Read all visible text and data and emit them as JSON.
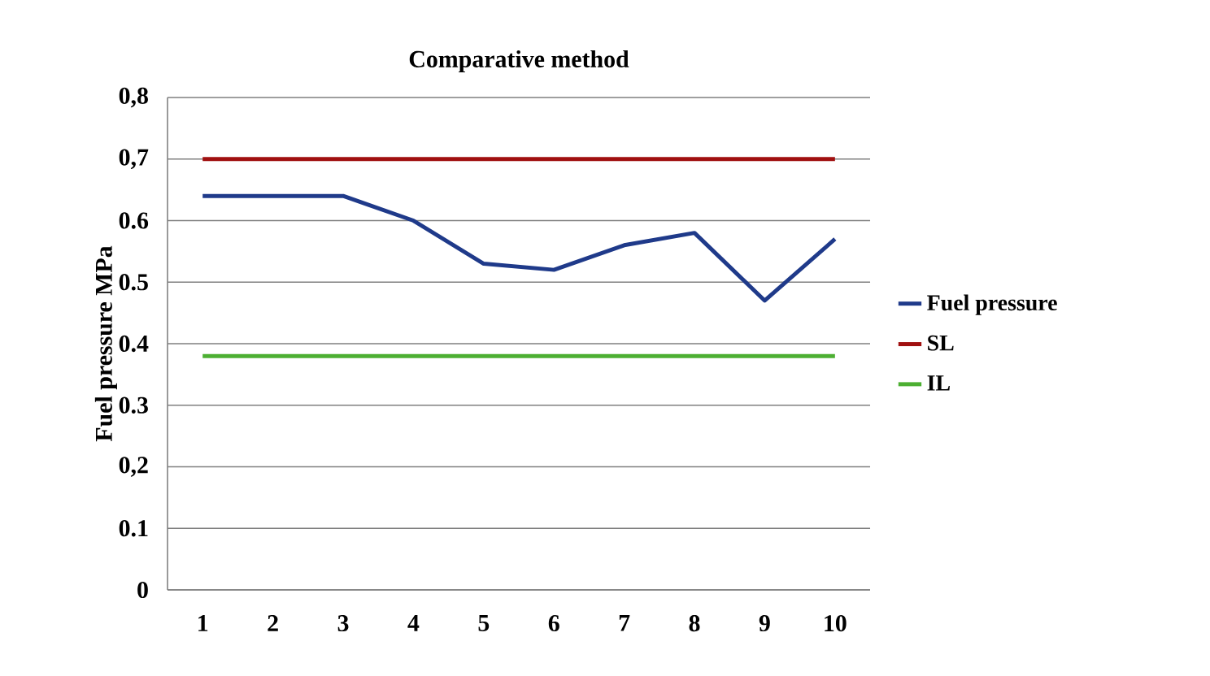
{
  "chart_data": {
    "type": "line",
    "title": "Comparative method",
    "ylabel": "Fuel pressure MPa",
    "categories": [
      "1",
      "2",
      "3",
      "4",
      "5",
      "6",
      "7",
      "8",
      "9",
      "10"
    ],
    "series": [
      {
        "name": "Fuel pressure",
        "color": "#1f3a8a",
        "values": [
          0.64,
          0.64,
          0.64,
          0.6,
          0.53,
          0.52,
          0.56,
          0.58,
          0.47,
          0.57
        ]
      },
      {
        "name": "SL",
        "color": "#a01010",
        "values": [
          0.7,
          0.7,
          0.7,
          0.7,
          0.7,
          0.7,
          0.7,
          0.7,
          0.7,
          0.7
        ]
      },
      {
        "name": "IL",
        "color": "#4caf32",
        "values": [
          0.38,
          0.38,
          0.38,
          0.38,
          0.38,
          0.38,
          0.38,
          0.38,
          0.38,
          0.38
        ]
      }
    ],
    "ylim": [
      0,
      0.8
    ],
    "yticks": [
      0,
      {
        "value": 0.1,
        "label": "0.1"
      },
      {
        "value": 0.2,
        "label": "0,2"
      },
      {
        "value": 0.3,
        "label": "0.3"
      },
      {
        "value": 0.4,
        "label": "0.4"
      },
      {
        "value": 0.5,
        "label": "0.5"
      },
      {
        "value": 0.6,
        "label": "0.6"
      },
      {
        "value": 0.7,
        "label": "0,7"
      },
      {
        "value": 0.8,
        "label": "0,8"
      }
    ],
    "grid": "y",
    "legend": "right",
    "marker": "none",
    "line_style": "solid"
  }
}
